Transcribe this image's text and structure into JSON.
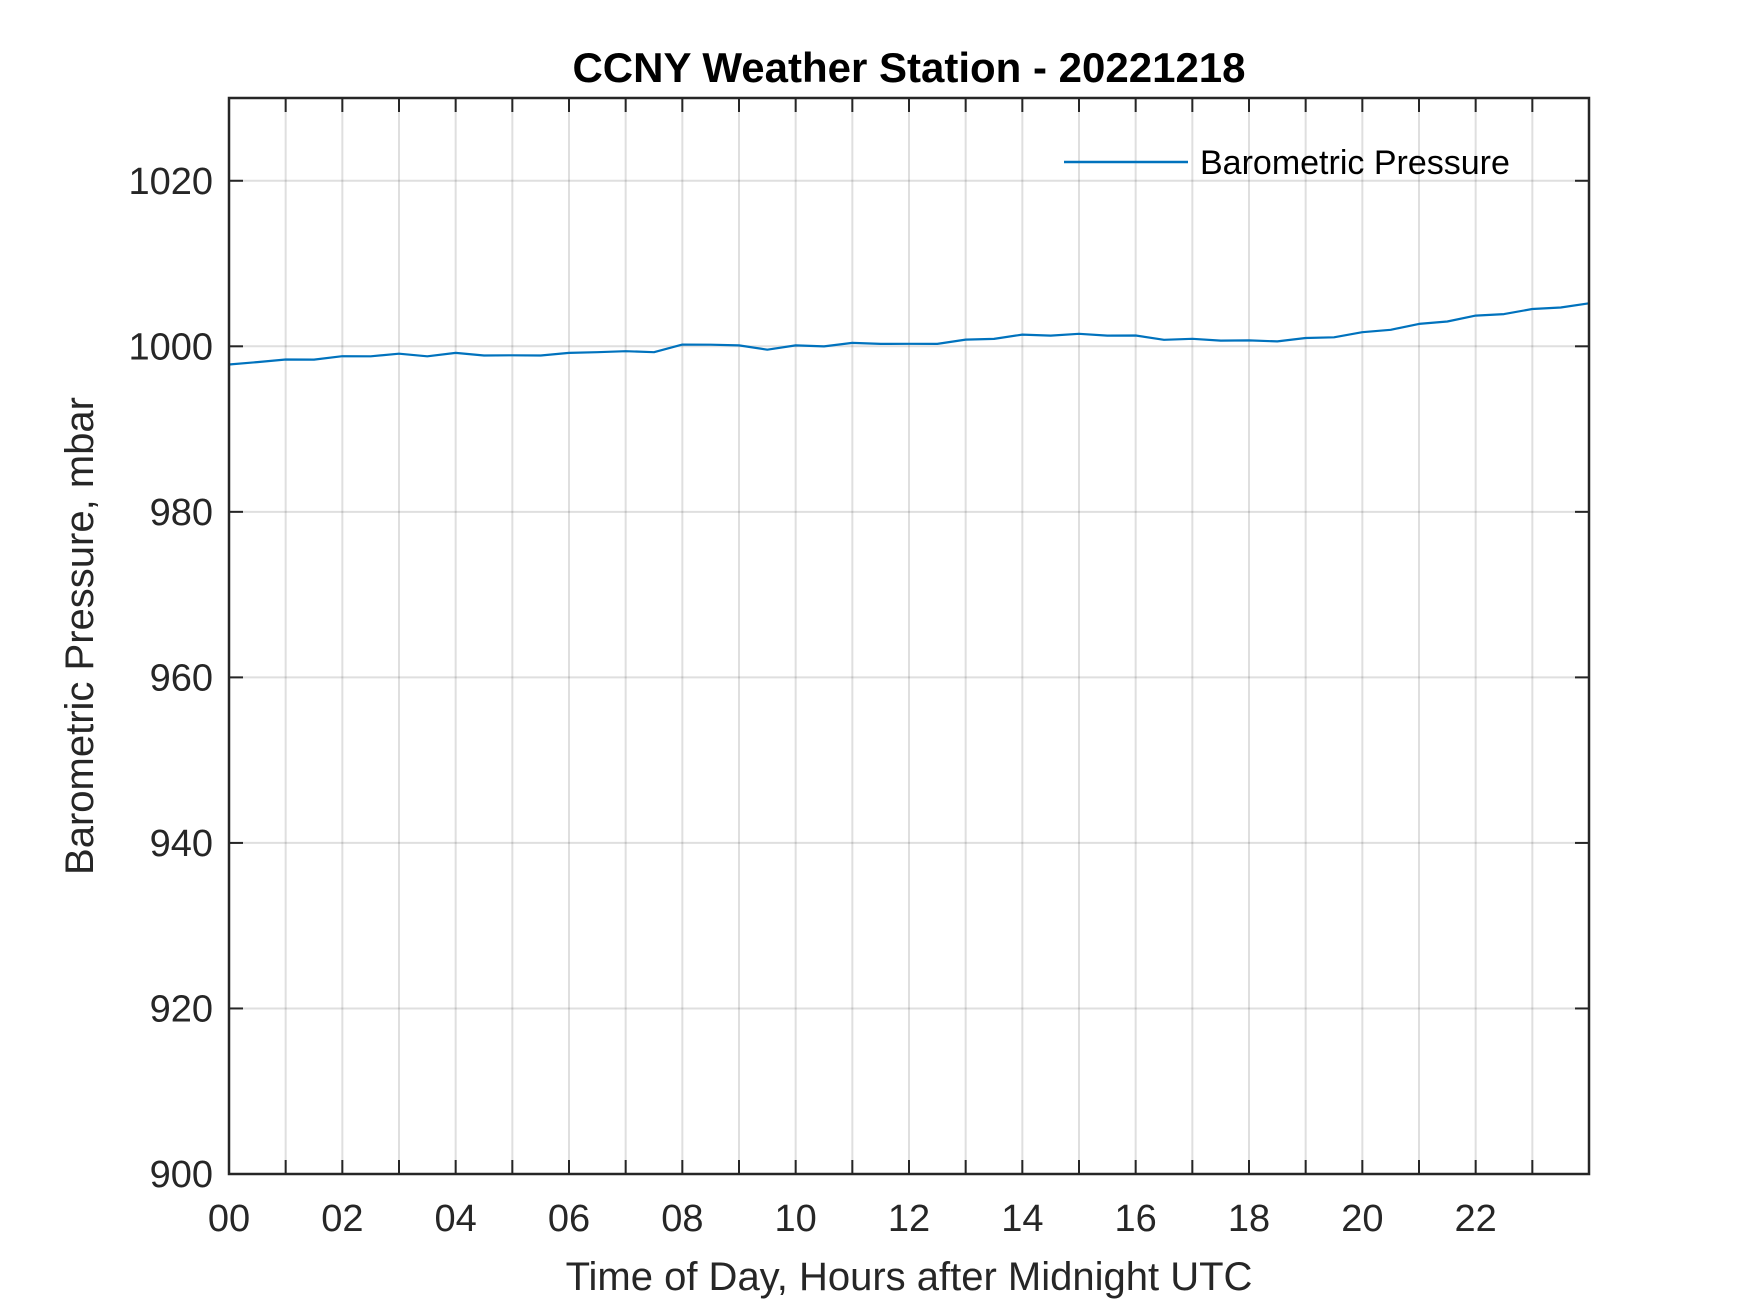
{
  "chart_data": {
    "type": "line",
    "title": "CCNY Weather Station - 20221218",
    "xlabel": "Time of Day, Hours after Midnight UTC",
    "ylabel": "Barometric Pressure, mbar",
    "xlim": [
      0,
      24
    ],
    "ylim": [
      900,
      1030
    ],
    "x_tick_labels": [
      "00",
      "02",
      "04",
      "06",
      "08",
      "10",
      "12",
      "14",
      "16",
      "18",
      "20",
      "22"
    ],
    "y_tick_labels": [
      "900",
      "920",
      "940",
      "960",
      "980",
      "1000",
      "1020"
    ],
    "grid": true,
    "legend_position": "top-right",
    "series": [
      {
        "name": "Barometric Pressure",
        "color": "#0072BD",
        "x": [
          0,
          0.5,
          1,
          1.5,
          2,
          2.5,
          3,
          3.5,
          4,
          4.5,
          5,
          5.5,
          6,
          6.5,
          7,
          7.5,
          8,
          8.5,
          9,
          9.5,
          10,
          10.5,
          11,
          11.5,
          12,
          12.5,
          13,
          13.5,
          14,
          14.5,
          15,
          15.5,
          16,
          16.5,
          17,
          17.5,
          18,
          18.5,
          19,
          19.5,
          20,
          20.5,
          21,
          21.5,
          22,
          22.5,
          23,
          23.5,
          24
        ],
        "y": [
          997.8,
          998.2,
          998.3,
          998.5,
          998.7,
          998.9,
          999.0,
          998.9,
          999.1,
          999.0,
          998.8,
          999.0,
          999.1,
          999.4,
          999.3,
          999.4,
          1000.1,
          1000.3,
          1000.0,
          999.7,
          1000.0,
          1000.1,
          1000.3,
          1000.4,
          1000.2,
          1000.4,
          1000.7,
          1001.0,
          1001.3,
          1001.4,
          1001.4,
          1001.4,
          1001.2,
          1000.9,
          1000.8,
          1000.8,
          1000.6,
          1000.7,
          1000.9,
          1001.2,
          1001.6,
          1002.1,
          1002.6,
          1003.1,
          1003.6,
          1004.0,
          1004.4,
          1004.8,
          1005.2
        ]
      }
    ]
  }
}
